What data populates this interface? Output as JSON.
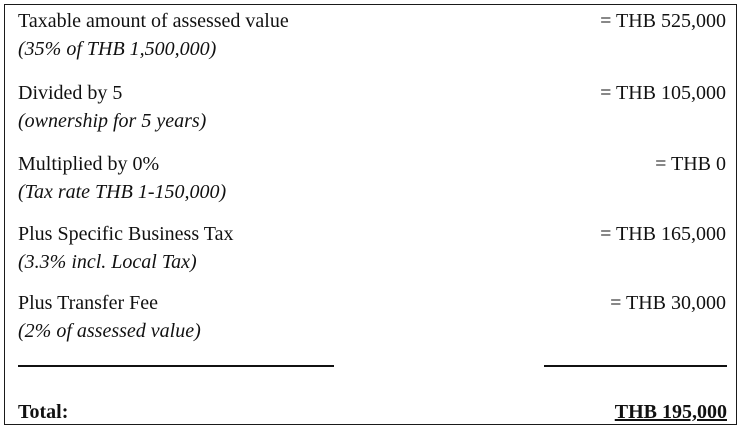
{
  "rows": [
    {
      "label": "Taxable amount of assessed value",
      "note": "(35% of THB 1,500,000)",
      "amount": "= THB 525,000"
    },
    {
      "label": "Divided by 5",
      "note": "(ownership for 5 years)",
      "amount": "= THB 105,000"
    },
    {
      "label": "Multiplied by 0%",
      "note": "(Tax rate THB 1-150,000)",
      "amount": "= THB 0"
    },
    {
      "label": "Plus Specific Business Tax",
      "note": "(3.3% incl. Local Tax)",
      "amount": "= THB 165,000"
    },
    {
      "label": "Plus Transfer Fee",
      "note": "(2% of assessed value)",
      "amount": "= THB 30,000"
    }
  ],
  "total": {
    "label": "Total:",
    "amount": "THB 195,000"
  }
}
